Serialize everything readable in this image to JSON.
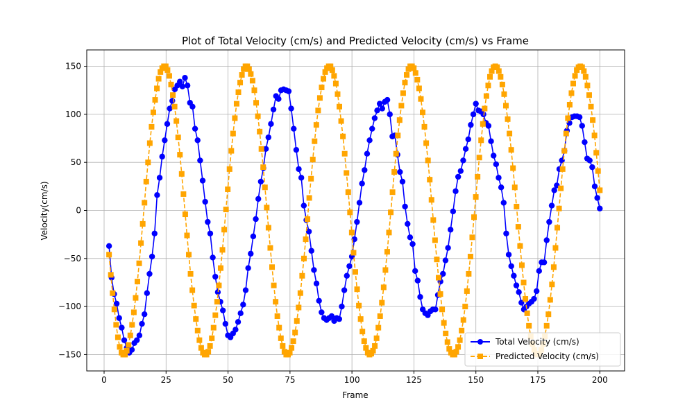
{
  "chart_data": {
    "type": "line",
    "title": "Plot of Total Velocity (cm/s) and Predicted Velocity (cm/s) vs Frame",
    "xlabel": "Frame",
    "ylabel": "Velocity(cm/s)",
    "xlim": [
      -7,
      210
    ],
    "ylim": [
      -167,
      167
    ],
    "xticks": [
      0,
      25,
      50,
      75,
      100,
      125,
      150,
      175,
      200
    ],
    "yticks": [
      -150,
      -100,
      -50,
      0,
      50,
      100,
      150
    ],
    "grid": true,
    "legend_position": "lower-right",
    "x_start": 2,
    "x_end": 200,
    "series": [
      {
        "name": "Total Velocity (cm/s)",
        "color": "#0000ff",
        "marker": "circle",
        "line_style": "solid",
        "values": [
          -37,
          -70,
          -87,
          -97,
          -112,
          -122,
          -135,
          -143,
          -148,
          -145,
          -138,
          -135,
          -130,
          -118,
          -108,
          -86,
          -66,
          -48,
          -24,
          16,
          34,
          56,
          73,
          90,
          106,
          114,
          126,
          130,
          134,
          129,
          138,
          130,
          112,
          108,
          85,
          73,
          52,
          31,
          9,
          -12,
          -24,
          -49,
          -69,
          -85,
          -95,
          -104,
          -118,
          -130,
          -132,
          -128,
          -124,
          -116,
          -107,
          -98,
          -83,
          -60,
          -45,
          -27,
          -9,
          12,
          30,
          44,
          64,
          76,
          90,
          105,
          119,
          116,
          125,
          126,
          125,
          124,
          106,
          85,
          63,
          43,
          34,
          5,
          -10,
          -22,
          -42,
          -62,
          -76,
          -94,
          -106,
          -112,
          -114,
          -112,
          -110,
          -115,
          -112,
          -113,
          -100,
          -83,
          -68,
          -58,
          -48,
          -30,
          -12,
          8,
          28,
          42,
          59,
          73,
          85,
          96,
          104,
          111,
          106,
          113,
          115,
          100,
          77,
          78,
          58,
          40,
          30,
          4,
          -14,
          -28,
          -35,
          -63,
          -73,
          -90,
          -103,
          -107,
          -109,
          -105,
          -103,
          -103,
          -88,
          -74,
          -66,
          -52,
          -39,
          -20,
          -1,
          20,
          35,
          41,
          52,
          64,
          74,
          89,
          100,
          111,
          104,
          103,
          100,
          91,
          88,
          72,
          57,
          48,
          34,
          24,
          8,
          -24,
          -46,
          -58,
          -68,
          -78,
          -85,
          -96,
          -103,
          -100,
          -97,
          -95,
          -92,
          -84,
          -63,
          -54,
          -54,
          -31,
          -12,
          5,
          21,
          26,
          43,
          52,
          62,
          83,
          91,
          97,
          98,
          98,
          97,
          88,
          71,
          54,
          52,
          45,
          25,
          13,
          2
        ]
      },
      {
        "name": "Predicted Velocity (cm/s)",
        "color": "#ffa500",
        "marker": "square",
        "line_style": "dashed",
        "values": [
          -46,
          -67,
          -86,
          -103,
          -119,
          -132,
          -142,
          -148,
          -150,
          -150,
          -146,
          -140,
          -130,
          -119,
          -106,
          -91,
          -74,
          -55,
          -34,
          -14,
          8,
          30,
          50,
          70,
          87,
          102,
          115,
          127,
          137,
          144,
          148,
          150,
          150,
          146,
          140,
          131,
          120,
          108,
          93,
          76,
          58,
          38,
          17,
          -4,
          -26,
          -46,
          -66,
          -83,
          -99,
          -113,
          -125,
          -135,
          -143,
          -148,
          -150,
          -150,
          -147,
          -141,
          -133,
          -122,
          -109,
          -95,
          -78,
          -60,
          -41,
          -20,
          1,
          22,
          43,
          62,
          80,
          96,
          111,
          123,
          133,
          141,
          147,
          150,
          150,
          147,
          142,
          135,
          125,
          112,
          98,
          82,
          64,
          45,
          24,
          3,
          -18,
          -39,
          -59,
          -78,
          -95,
          -110,
          -122,
          -133,
          -141,
          -147,
          -150,
          -150,
          -148,
          -143,
          -136,
          -127,
          -115,
          -101,
          -86,
          -68,
          -50,
          -30,
          -9,
          13,
          33,
          53,
          72,
          89,
          104,
          117,
          128,
          137,
          144,
          148,
          150,
          150,
          146,
          140,
          132,
          121,
          108,
          93,
          77,
          59,
          39,
          19,
          -2,
          -23,
          -44,
          -64,
          -82,
          -99,
          -113,
          -126,
          -136,
          -143,
          -148,
          -150,
          -149,
          -146,
          -141,
          -133,
          -122,
          -110,
          -96,
          -80,
          -62,
          -43,
          -23,
          -2,
          19,
          40,
          59,
          78,
          94,
          109,
          122,
          133,
          141,
          147,
          150,
          150,
          148,
          143,
          136,
          127,
          116,
          102,
          87,
          70,
          52,
          32,
          11,
          -10,
          -31,
          -51,
          -70,
          -87,
          -103,
          -117,
          -128,
          -137,
          -144,
          -148,
          -150,
          -150,
          -147,
          -142,
          -135,
          -125,
          -114,
          -100,
          -84,
          -66,
          -48,
          -28,
          -7,
          14,
          35,
          55,
          73,
          90,
          106,
          119,
          130,
          139,
          145,
          149,
          150,
          149,
          145,
          139,
          131,
          121,
          109,
          95,
          80,
          63,
          44,
          24,
          4,
          -17,
          -37,
          -57,
          -75,
          -92,
          -107,
          -120,
          -131,
          -139,
          -145,
          -149,
          -150,
          -149,
          -145,
          -139,
          -131,
          -120,
          -108,
          -93,
          -77,
          -59,
          -39,
          -18,
          2,
          23,
          43,
          62,
          80,
          96,
          110,
          122,
          132,
          140,
          146,
          149,
          150,
          149,
          145,
          139,
          130,
          120,
          108,
          94,
          78,
          60,
          41,
          21
        ]
      }
    ]
  }
}
